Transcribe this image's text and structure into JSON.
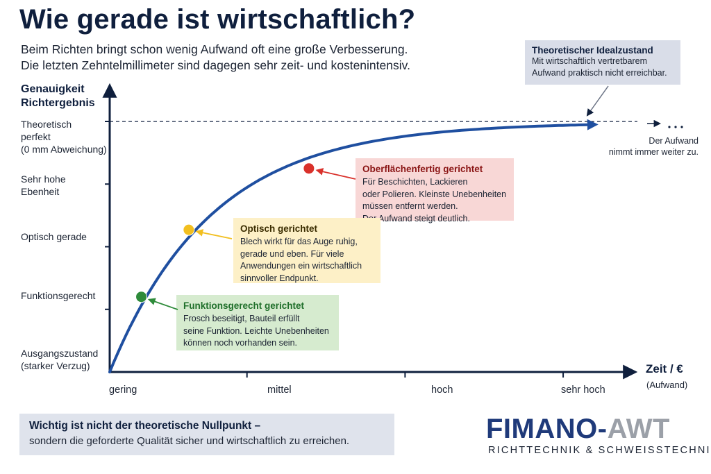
{
  "title": "Wie gerade ist wirtschaftlich?",
  "subtitle": [
    "Beim Richten bringt schon wenig Aufwand oft eine große Verbesserung.",
    "Die letzten Zehntelmillimeter sind dagegen sehr zeit- und kostenintensiv."
  ],
  "ideal_box": {
    "title": "Theoretischer Idealzustand",
    "lines": [
      "Mit wirtschaftlich vertretbarem",
      "Aufwand praktisch nicht erreichbar."
    ]
  },
  "colors": {
    "curve": "#1f4fa0",
    "axis": "#0f1f3d",
    "green": "#2e8b3a",
    "yellow": "#f2bf1f",
    "red": "#d9312b"
  },
  "chart_data": {
    "type": "line",
    "xlabel": "Zeit / €",
    "xlabel_sub": "(Aufwand)",
    "ylabel": [
      "Genauigkeit",
      "Richtergebnis"
    ],
    "x_ticks": [
      "gering",
      "mittel",
      "hoch",
      "sehr hoch"
    ],
    "y_ticks": [
      [
        "Ausgangszustand",
        "(starker Verzug)"
      ],
      [
        "Funktionsgerecht"
      ],
      [
        "Optisch gerade"
      ],
      [
        "Sehr hohe",
        "Ebenheit"
      ],
      [
        "Theoretisch",
        "perfekt",
        "(0 mm Abweichung)"
      ]
    ],
    "xlim": [
      0,
      3.25
    ],
    "ylim": [
      0,
      4
    ],
    "curve": {
      "shape": "saturating",
      "y_end": 3.95
    },
    "asymptote_y": 4,
    "grid": false,
    "points": [
      {
        "x": 0.2,
        "y": 1.2,
        "color": "#2e8b3a"
      },
      {
        "x": 0.5,
        "y": 2.27,
        "color": "#f2bf1f"
      },
      {
        "x": 1.26,
        "y": 3.25,
        "color": "#d9312b"
      }
    ],
    "end_annotation": [
      "Der Aufwand",
      "nimmt immer weiter zu."
    ]
  },
  "annotations": [
    {
      "title": "Funktionsgerecht gerichtet",
      "title_color": "#1f6f2a",
      "bg": "#d6ebcf",
      "lines": [
        "Frosch beseitigt, Bauteil erfüllt",
        "seine Funktion. Leichte Unebenheiten",
        "können noch vorhanden sein."
      ]
    },
    {
      "title": "Optisch gerichtet",
      "title_color": "#3a2c00",
      "bg": "#fdf0c7",
      "lines": [
        "Blech wirkt für das Auge ruhig,",
        "gerade und eben. Für viele",
        "Anwendungen ein wirtschaftlich",
        "sinnvoller Endpunkt."
      ]
    },
    {
      "title": "Oberflächenfertig gerichtet",
      "title_color": "#8a1414",
      "bg": "#f8d7d6",
      "lines": [
        "Für Beschichten, Lackieren",
        "oder Polieren. Kleinste Unebenheiten",
        "müssen entfernt werden.",
        "Der Aufwand steigt deutlich."
      ]
    }
  ],
  "bottom_box": {
    "line1": "Wichtig ist nicht der theoretische Nullpunkt –",
    "line2": "sondern die geforderte Qualität sicher und wirtschaftlich zu erreichen."
  },
  "logo": {
    "main_a": "FIMANO-",
    "main_b": "AWT",
    "sub": "RICHTTECHNIK & SCHWEISSTECHNIK"
  }
}
